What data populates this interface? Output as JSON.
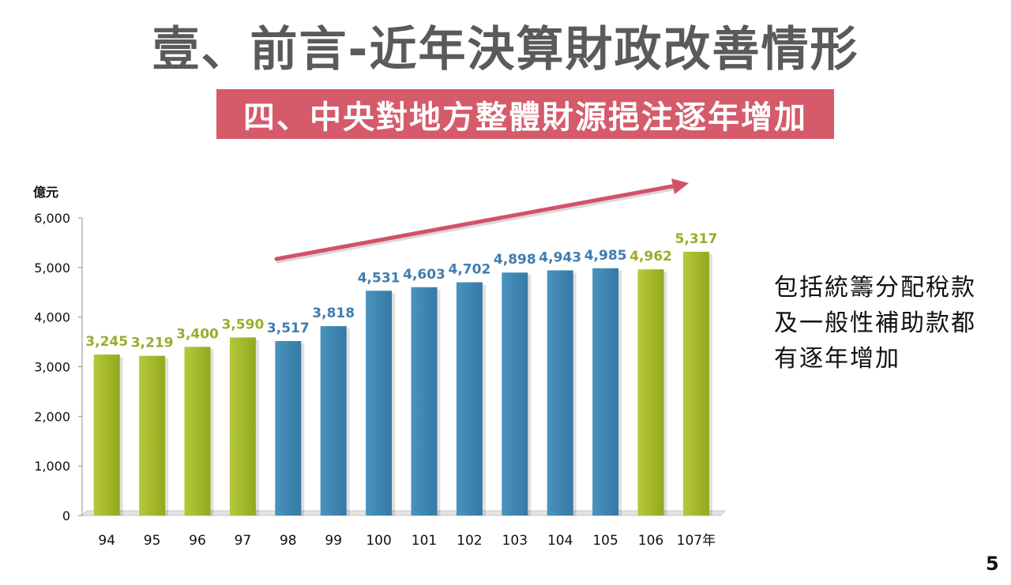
{
  "slide": {
    "title": "壹、前言-近年決算財政改善情形",
    "subtitle": "四、中央對地方整體財源挹注逐年增加",
    "note_lines": [
      "包括統籌分配稅款",
      "及一般性補助款都",
      "有逐年增加"
    ],
    "page_number": "5"
  },
  "colors": {
    "green": "#a3b827",
    "blue": "#4186b2",
    "green_label": "#9aad2b",
    "blue_label": "#3f7db0",
    "banner": "#d55a6a",
    "arrow": "#d4506a"
  },
  "chart_data": {
    "type": "bar",
    "ylabel": "億元",
    "xlabel": "",
    "categories": [
      "94",
      "95",
      "96",
      "97",
      "98",
      "99",
      "100",
      "101",
      "102",
      "103",
      "104",
      "105",
      "106",
      "107年"
    ],
    "values": [
      3245,
      3219,
      3400,
      3590,
      3517,
      3818,
      4531,
      4603,
      4702,
      4898,
      4943,
      4985,
      4962,
      5317
    ],
    "value_labels": [
      "3,245",
      "3,219",
      "3,400",
      "3,590",
      "3,517",
      "3,818",
      "4,531",
      "4,603",
      "4,702",
      "4,898",
      "4,943",
      "4,985",
      "4,962",
      "5,317"
    ],
    "bar_colors": [
      "green",
      "green",
      "green",
      "green",
      "blue",
      "blue",
      "blue",
      "blue",
      "blue",
      "blue",
      "blue",
      "blue",
      "green",
      "green"
    ],
    "ylim": [
      0,
      6000
    ],
    "yticks": [
      "0",
      "1,000",
      "2,000",
      "3,000",
      "4,000",
      "5,000",
      "6,000"
    ],
    "grid": false,
    "trend_arrow": true
  }
}
